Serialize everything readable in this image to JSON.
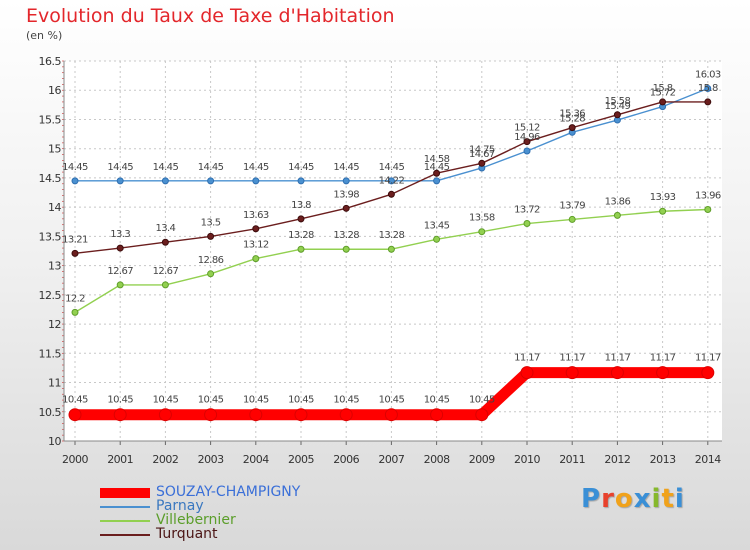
{
  "header": {
    "title": "Evolution du Taux de Taxe d'Habitation",
    "unit": "(en %)"
  },
  "logo": {
    "text": "Proxiti",
    "letter_colors": [
      "#3a8fd6",
      "#e8412c",
      "#f0a21b",
      "#3a8fd6",
      "#86b82c",
      "#f0a21b",
      "#3a8fd6"
    ]
  },
  "chart_data": {
    "type": "line",
    "title": "Evolution du Taux de Taxe d'Habitation",
    "ylabel": "(en %)",
    "xlabel": "",
    "ylim": [
      10,
      16.5
    ],
    "yticks": [
      "10",
      "10.5",
      "11",
      "11.5",
      "12",
      "12.5",
      "13",
      "13.5",
      "14",
      "14.5",
      "15",
      "15.5",
      "16",
      "16.5"
    ],
    "ytick_values": [
      10,
      10.5,
      11,
      11.5,
      12,
      12.5,
      13,
      13.5,
      14,
      14.5,
      15,
      15.5,
      16,
      16.5
    ],
    "grid": true,
    "legend_position": "bottom-left",
    "x": [
      "2000",
      "2001",
      "2002",
      "2003",
      "2004",
      "2005",
      "2006",
      "2007",
      "2008",
      "2009",
      "2010",
      "2011",
      "2012",
      "2013",
      "2014"
    ],
    "series": [
      {
        "name": "SOUZAY-CHAMPIGNY",
        "color": "#ff0000",
        "values": [
          10.45,
          10.45,
          10.45,
          10.45,
          10.45,
          10.45,
          10.45,
          10.45,
          10.45,
          10.45,
          11.17,
          11.17,
          11.17,
          11.17,
          11.17
        ],
        "labels": [
          "10.45",
          "10.45",
          "10.45",
          "10.45",
          "10.45",
          "10.45",
          "10.45",
          "10.45",
          "10.45",
          "10.45",
          "11.17",
          "11.17",
          "11.17",
          "11.17",
          "11.17"
        ]
      },
      {
        "name": "Parnay",
        "color": "#4a90d0",
        "values": [
          14.45,
          14.45,
          14.45,
          14.45,
          14.45,
          14.45,
          14.45,
          14.45,
          14.45,
          14.67,
          14.96,
          15.28,
          15.49,
          15.72,
          16.03
        ],
        "labels": [
          "14.45",
          "14.45",
          "14.45",
          "14.45",
          "14.45",
          "14.45",
          "14.45",
          "14.45",
          "14.45",
          "14.67",
          "14.96",
          "15.28",
          "15.49",
          "15.72",
          "16.03"
        ]
      },
      {
        "name": "Villebernier",
        "color": "#92d050",
        "values": [
          12.2,
          12.67,
          12.67,
          12.86,
          13.12,
          13.28,
          13.28,
          13.28,
          13.45,
          13.58,
          13.72,
          13.79,
          13.86,
          13.93,
          13.96
        ],
        "labels": [
          "12.2",
          "12.67",
          "12.67",
          "12.86",
          "13.12",
          "13.28",
          "13.28",
          "13.28",
          "13.45",
          "13.58",
          "13.72",
          "13.79",
          "13.86",
          "13.93",
          "13.96"
        ]
      },
      {
        "name": "Turquant",
        "color": "#6b1e1e",
        "values": [
          13.21,
          13.3,
          13.4,
          13.5,
          13.63,
          13.8,
          13.98,
          14.22,
          14.58,
          14.75,
          15.12,
          15.36,
          15.58,
          15.8,
          15.8
        ],
        "labels": [
          "13.21",
          "13.3",
          "13.4",
          "13.5",
          "13.63",
          "13.8",
          "13.98",
          "14.22",
          "14.58",
          "14.75",
          "15.12",
          "15.36",
          "15.58",
          "15.8",
          "15.8"
        ]
      }
    ]
  }
}
